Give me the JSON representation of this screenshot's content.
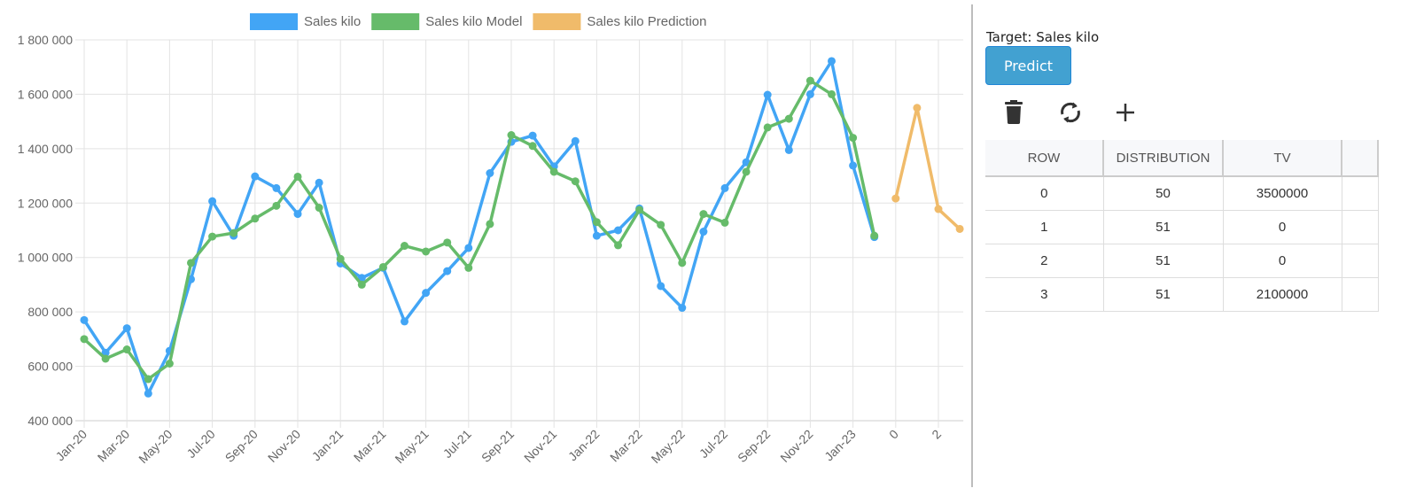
{
  "chart_data": {
    "type": "line",
    "categories": [
      "Jan-20",
      "Feb-20",
      "Mar-20",
      "Apr-20",
      "May-20",
      "Jun-20",
      "Jul-20",
      "Aug-20",
      "Sep-20",
      "Oct-20",
      "Nov-20",
      "Dec-20",
      "Jan-21",
      "Feb-21",
      "Mar-21",
      "Apr-21",
      "May-21",
      "Jun-21",
      "Jul-21",
      "Aug-21",
      "Sep-21",
      "Oct-21",
      "Nov-21",
      "Dec-21",
      "Jan-22",
      "Feb-22",
      "Mar-22",
      "Apr-22",
      "May-22",
      "Jun-22",
      "Jul-22",
      "Aug-22",
      "Sep-22",
      "Oct-22",
      "Nov-22",
      "Dec-22",
      "Jan-23",
      "Feb-23",
      "0",
      "1",
      "2",
      "3"
    ],
    "tick_labels": [
      "Jan-20",
      "Mar-20",
      "May-20",
      "Jul-20",
      "Sep-20",
      "Nov-20",
      "Jan-21",
      "Mar-21",
      "May-21",
      "Jul-21",
      "Sep-21",
      "Nov-21",
      "Jan-22",
      "Mar-22",
      "May-22",
      "Jul-22",
      "Sep-22",
      "Nov-22",
      "Jan-23",
      "0",
      "2"
    ],
    "y_ticks": [
      "400 000",
      "600 000",
      "800 000",
      "1 000 000",
      "1 200 000",
      "1 400 000",
      "1 600 000",
      "1 800 000"
    ],
    "ylim": [
      400000,
      1800000
    ],
    "grid": true,
    "legend_position": "top",
    "series": [
      {
        "name": "Sales kilo",
        "color": "#42a5f5",
        "values": [
          770000,
          650000,
          740000,
          500000,
          657000,
          920000,
          1207000,
          1080000,
          1298000,
          1255000,
          1160000,
          1275000,
          978000,
          925000,
          962000,
          765000,
          870000,
          950000,
          1035000,
          1310000,
          1425000,
          1448000,
          1335000,
          1428000,
          1080000,
          1100000,
          1180000,
          895000,
          815000,
          1095000,
          1255000,
          1350000,
          1598000,
          1395000,
          1600000,
          1722000,
          1338000,
          1075000,
          null,
          null,
          null,
          null
        ]
      },
      {
        "name": "Sales kilo Model",
        "color": "#66bb6a",
        "values": [
          700000,
          628000,
          662000,
          553000,
          610000,
          980000,
          1077000,
          1090000,
          1143000,
          1190000,
          1297000,
          1183000,
          995000,
          900000,
          965000,
          1043000,
          1022000,
          1055000,
          962000,
          1123000,
          1450000,
          1410000,
          1315000,
          1280000,
          1130000,
          1045000,
          1175000,
          1120000,
          980000,
          1160000,
          1128000,
          1315000,
          1478000,
          1510000,
          1650000,
          1600000,
          1440000,
          1080000,
          null,
          null,
          null,
          null
        ]
      },
      {
        "name": "Sales kilo Prediction",
        "color": "#f0bb6a",
        "values": [
          null,
          null,
          null,
          null,
          null,
          null,
          null,
          null,
          null,
          null,
          null,
          null,
          null,
          null,
          null,
          null,
          null,
          null,
          null,
          null,
          null,
          null,
          null,
          null,
          null,
          null,
          null,
          null,
          null,
          null,
          null,
          null,
          null,
          null,
          null,
          null,
          null,
          null,
          1217000,
          1550000,
          1178000,
          1105000
        ]
      }
    ]
  },
  "panel": {
    "target_label": "Target: Sales kilo",
    "predict_label": "Predict",
    "icons": [
      "trash-icon",
      "refresh-icon",
      "plus-icon"
    ],
    "table": {
      "headers": [
        "ROW",
        "DISTRIBUTION",
        "TV",
        ""
      ],
      "rows": [
        [
          "0",
          "50",
          "3500000",
          ""
        ],
        [
          "1",
          "51",
          "0",
          ""
        ],
        [
          "2",
          "51",
          "0",
          ""
        ],
        [
          "3",
          "51",
          "2100000",
          ""
        ]
      ]
    }
  }
}
